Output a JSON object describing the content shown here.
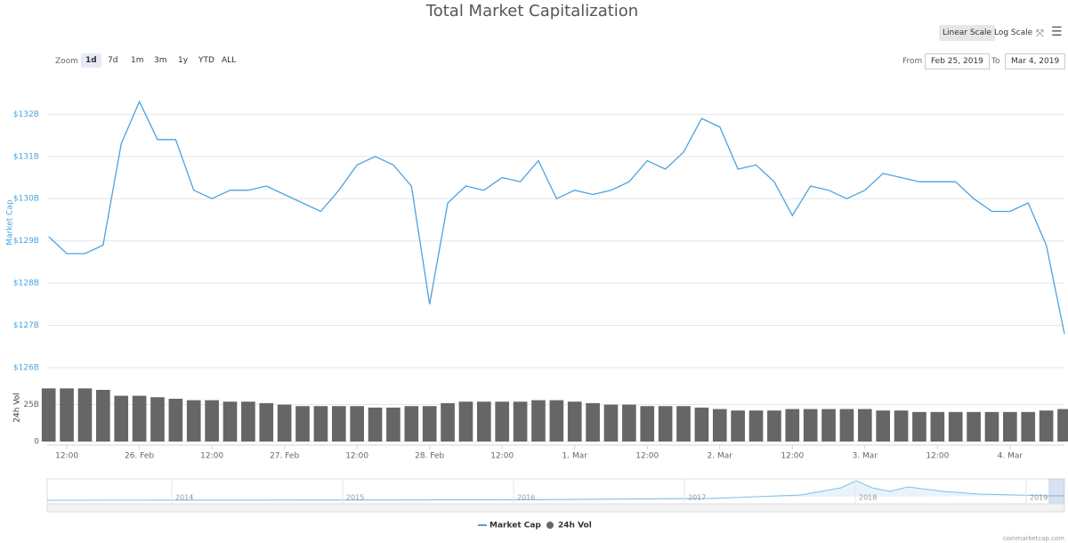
{
  "chart_data": {
    "type": "line",
    "title": "Total Market Capitalization",
    "y_label": "Market Cap",
    "y2_label": "24h Vol",
    "x": [
      "2019-02-25 09:00",
      "2019-02-25 12:00",
      "2019-02-25 15:00",
      "2019-02-25 18:00",
      "2019-02-25 21:00",
      "2019-02-26 00:00",
      "2019-02-26 03:00",
      "2019-02-26 06:00",
      "2019-02-26 09:00",
      "2019-02-26 12:00",
      "2019-02-26 15:00",
      "2019-02-26 18:00",
      "2019-02-26 21:00",
      "2019-02-27 00:00",
      "2019-02-27 03:00",
      "2019-02-27 06:00",
      "2019-02-27 09:00",
      "2019-02-27 12:00",
      "2019-02-27 15:00",
      "2019-02-27 18:00",
      "2019-02-27 21:00",
      "2019-02-28 00:00",
      "2019-02-28 03:00",
      "2019-02-28 06:00",
      "2019-02-28 09:00",
      "2019-02-28 12:00",
      "2019-02-28 15:00",
      "2019-02-28 18:00",
      "2019-02-28 21:00",
      "2019-03-01 00:00",
      "2019-03-01 03:00",
      "2019-03-01 06:00",
      "2019-03-01 09:00",
      "2019-03-01 12:00",
      "2019-03-01 15:00",
      "2019-03-01 18:00",
      "2019-03-01 21:00",
      "2019-03-02 00:00",
      "2019-03-02 03:00",
      "2019-03-02 06:00",
      "2019-03-02 09:00",
      "2019-03-02 12:00",
      "2019-03-02 15:00",
      "2019-03-02 18:00",
      "2019-03-02 21:00",
      "2019-03-03 00:00",
      "2019-03-03 03:00",
      "2019-03-03 06:00",
      "2019-03-03 09:00",
      "2019-03-03 12:00",
      "2019-03-03 15:00",
      "2019-03-03 18:00",
      "2019-03-03 21:00",
      "2019-03-04 00:00",
      "2019-03-04 03:00",
      "2019-03-04 06:00",
      "2019-03-04 09:00"
    ],
    "series": [
      {
        "name": "Market Cap",
        "color": "#4aa3df",
        "values": [
          129.1,
          128.7,
          128.7,
          128.9,
          131.3,
          132.3,
          131.4,
          131.4,
          130.2,
          130.0,
          130.2,
          130.2,
          130.3,
          130.1,
          129.9,
          129.7,
          130.2,
          130.8,
          131.0,
          130.8,
          130.3,
          127.5,
          129.9,
          130.3,
          130.2,
          130.5,
          130.4,
          130.9,
          130.0,
          130.2,
          130.1,
          130.2,
          130.4,
          130.9,
          130.7,
          131.1,
          131.9,
          131.7,
          130.7,
          130.8,
          130.4,
          129.6,
          130.3,
          130.2,
          130.0,
          130.2,
          130.6,
          130.5,
          130.4,
          130.4,
          130.4,
          130.0,
          129.7,
          129.7,
          129.9,
          128.9,
          126.8
        ]
      },
      {
        "name": "24h Vol",
        "color": "#666666",
        "type": "bar",
        "axis": "y2",
        "values": [
          36,
          36,
          36,
          35,
          31,
          31,
          30,
          29,
          28,
          28,
          27,
          27,
          26,
          25,
          24,
          24,
          24,
          24,
          23,
          23,
          24,
          24,
          26,
          27,
          27,
          27,
          27,
          28,
          28,
          27,
          26,
          25,
          25,
          24,
          24,
          24,
          23,
          22,
          21,
          21,
          21,
          22,
          22,
          22,
          22,
          22,
          21,
          21,
          20,
          20,
          20,
          20,
          20,
          20,
          20,
          21,
          22
        ]
      }
    ],
    "xlim": [
      "2019-02-25 08:45",
      "2019-03-04 09:00"
    ],
    "xticks": [
      {
        "value": "2019-02-25 12:00",
        "label": "12:00"
      },
      {
        "value": "2019-02-26 00:00",
        "label": "26. Feb"
      },
      {
        "value": "2019-02-26 12:00",
        "label": "12:00"
      },
      {
        "value": "2019-02-27 00:00",
        "label": "27. Feb"
      },
      {
        "value": "2019-02-27 12:00",
        "label": "12:00"
      },
      {
        "value": "2019-02-28 00:00",
        "label": "28. Feb"
      },
      {
        "value": "2019-02-28 12:00",
        "label": "12:00"
      },
      {
        "value": "2019-03-01 00:00",
        "label": "1. Mar"
      },
      {
        "value": "2019-03-01 12:00",
        "label": "12:00"
      },
      {
        "value": "2019-03-02 00:00",
        "label": "2. Mar"
      },
      {
        "value": "2019-03-02 12:00",
        "label": "12:00"
      },
      {
        "value": "2019-03-03 00:00",
        "label": "3. Mar"
      },
      {
        "value": "2019-03-03 12:00",
        "label": "12:00"
      },
      {
        "value": "2019-03-04 00:00",
        "label": "4. Mar"
      }
    ],
    "ylim": [
      126,
      132.85
    ],
    "yticks": [
      {
        "value": 126,
        "label": "$126B"
      },
      {
        "value": 127,
        "label": "$127B"
      },
      {
        "value": 128,
        "label": "$128B"
      },
      {
        "value": 129,
        "label": "$129B"
      },
      {
        "value": 130,
        "label": "$130B"
      },
      {
        "value": 131,
        "label": "$131B"
      },
      {
        "value": 132,
        "label": "$132B"
      }
    ],
    "y2lim": [
      0,
      38
    ],
    "y2ticks": [
      0,
      {
        "value": 25,
        "label": "25B"
      }
    ],
    "grid": true
  },
  "controls": {
    "zoom_label": "Zoom",
    "zoom": [
      "1d",
      "7d",
      "1m",
      "3m",
      "1y",
      "YTD",
      "ALL"
    ],
    "scales": [
      "Linear Scale",
      "Log Scale"
    ],
    "from_label": "From",
    "from": "Feb 25, 2019",
    "to_label": "To",
    "to": "Mar 4, 2019"
  },
  "navigator": {
    "years": [
      "2014",
      "2015",
      "2016",
      "2017",
      "2018",
      "2019"
    ]
  },
  "credit": "coinmarketcap.com"
}
